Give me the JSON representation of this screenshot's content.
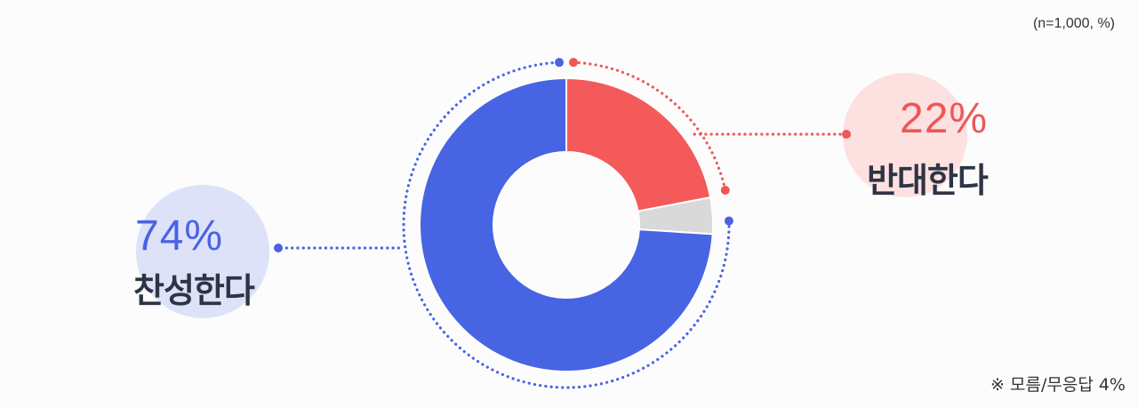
{
  "chart_data": {
    "type": "pie",
    "variant": "donut",
    "sample_note": "(n=1,000, %)",
    "footnote": "※ 모름/무응답 4%",
    "slices": [
      {
        "label": "반대한다",
        "value": 22,
        "value_label": "22%",
        "color": "#f45a5a"
      },
      {
        "label": "모름/무응답",
        "value": 4,
        "value_label": "",
        "color": "#d9d9d9"
      },
      {
        "label": "찬성한다",
        "value": 74,
        "value_label": "74%",
        "color": "#4764e3"
      }
    ],
    "accent_colors": {
      "support": "#4a63e0",
      "oppose": "#ef5656",
      "support_bubble": "#dde2f8",
      "oppose_bubble": "#fde0e0"
    }
  }
}
